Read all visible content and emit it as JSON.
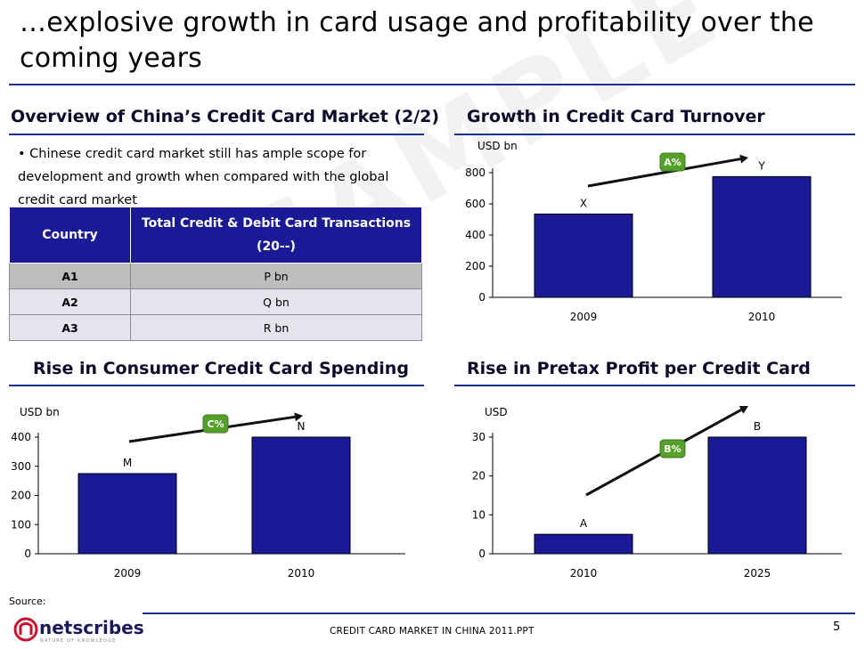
{
  "slide": {
    "title": "…explosive growth in card usage and profitability over the coming years",
    "source_label": "Source:",
    "footer_text": "CREDIT  CARD MARKET IN CHINA 2011.PPT",
    "page_number": "5",
    "watermark": "SAMPLE",
    "logo_text": "netscribes",
    "logo_tagline": "NATURE OF KNOWLEDGE",
    "accent_color": "#1a1a96",
    "badge_color": "#55a02a"
  },
  "overview": {
    "title": "Overview of China’s Credit Card Market (2/2)",
    "bullet": "• Chinese credit card market still has ample scope for development and growth when compared with the global credit card market",
    "table": {
      "headers": [
        "Country",
        "Total Credit & Debit Card Transactions (20--)"
      ],
      "rows": [
        {
          "country": "A1",
          "value": "P bn"
        },
        {
          "country": "A2",
          "value": "Q bn"
        },
        {
          "country": "A3",
          "value": "R bn"
        }
      ]
    }
  },
  "chart_data": [
    {
      "id": "turnover",
      "type": "bar",
      "title": "Growth in Credit Card Turnover",
      "unit_label": "USD bn",
      "categories": [
        "2009",
        "2010"
      ],
      "values": [
        535,
        775
      ],
      "bar_labels": [
        "X",
        "Y"
      ],
      "growth_badge": "A%",
      "ylim": [
        0,
        800
      ],
      "yticks": [
        0,
        200,
        400,
        600,
        800
      ],
      "bar_color": "#1a1a96"
    },
    {
      "id": "spending",
      "type": "bar",
      "title": "Rise in Consumer Credit Card Spending",
      "unit_label": "USD bn",
      "categories": [
        "2009",
        "2010"
      ],
      "values": [
        275,
        400
      ],
      "bar_labels": [
        "M",
        "N"
      ],
      "growth_badge": "C%",
      "ylim": [
        0,
        400
      ],
      "yticks": [
        0,
        100,
        200,
        300,
        400
      ],
      "bar_color": "#1a1a96"
    },
    {
      "id": "profit",
      "type": "bar",
      "title": "Rise in Pretax Profit per Credit Card",
      "unit_label": "USD",
      "categories": [
        "2010",
        "2025"
      ],
      "values": [
        5,
        30
      ],
      "bar_labels": [
        "A",
        "B"
      ],
      "growth_badge": "B%",
      "ylim": [
        0,
        30
      ],
      "yticks": [
        0,
        10,
        20,
        30
      ],
      "bar_color": "#1a1a96"
    }
  ]
}
